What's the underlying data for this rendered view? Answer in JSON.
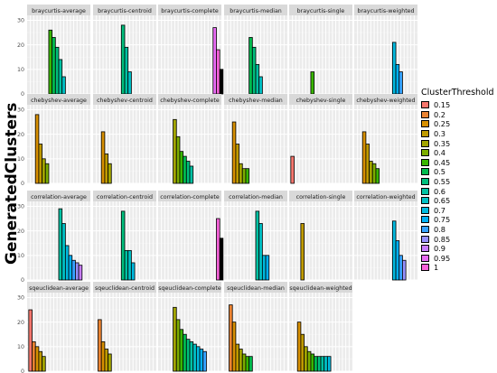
{
  "chart_data": {
    "type": "bar",
    "ylabel": "GeneratedClusters",
    "legend_title": "ClusterThreshold",
    "legend_placement": "right",
    "grid": true,
    "thresholds": [
      "0.15",
      "0.2",
      "0.25",
      "0.3",
      "0.35",
      "0.4",
      "0.45",
      "0.5",
      "0.55",
      "0.6",
      "0.65",
      "0.7",
      "0.75",
      "0.8",
      "0.85",
      "0.9",
      "0.95",
      "1"
    ],
    "legend_colors": [
      "#F8766D",
      "#EA8331",
      "#D89000",
      "#C09B00",
      "#A3A500",
      "#7CAE00",
      "#39B600",
      "#00BB4E",
      "#00BF7D",
      "#00C1A3",
      "#00BFC4",
      "#00BAE0",
      "#00B0F6",
      "#35A2FF",
      "#9590FF",
      "#C77CFF",
      "#E76BF3",
      "#FA62DB"
    ],
    "y_ticks": [
      0,
      10,
      20,
      30
    ],
    "ylim": [
      0,
      32
    ],
    "panels": [
      {
        "title": "braycurtis-average",
        "bars": [
          [
            6,
            26
          ],
          [
            7,
            23
          ],
          [
            8,
            19
          ],
          [
            9,
            14
          ],
          [
            10,
            7
          ]
        ]
      },
      {
        "title": "braycurtis-centroid",
        "bars": [
          [
            8,
            28
          ],
          [
            9,
            19
          ],
          [
            10,
            9
          ]
        ]
      },
      {
        "title": "braycurtis-complete",
        "bars": [
          [
            16,
            27
          ],
          [
            17,
            18
          ],
          [
            18,
            10
          ]
        ]
      },
      {
        "title": "braycurtis-median",
        "bars": [
          [
            7,
            23
          ],
          [
            8,
            19
          ],
          [
            9,
            12
          ],
          [
            10,
            7
          ]
        ]
      },
      {
        "title": "braycurtis-single",
        "bars": [
          [
            6,
            9
          ]
        ]
      },
      {
        "title": "braycurtis-weighted",
        "bars": [
          [
            11,
            21
          ],
          [
            12,
            12
          ],
          [
            13,
            9
          ]
        ]
      },
      {
        "title": "chebyshev-average",
        "bars": [
          [
            2,
            28
          ],
          [
            3,
            16
          ],
          [
            4,
            10
          ],
          [
            5,
            8
          ]
        ]
      },
      {
        "title": "chebyshev-centroid",
        "bars": [
          [
            2,
            21
          ],
          [
            3,
            12
          ],
          [
            4,
            8
          ]
        ]
      },
      {
        "title": "chebyshev-complete",
        "bars": [
          [
            4,
            26
          ],
          [
            5,
            19
          ],
          [
            6,
            13
          ],
          [
            7,
            11
          ],
          [
            8,
            9
          ],
          [
            9,
            7
          ]
        ]
      },
      {
        "title": "chebyshev-median",
        "bars": [
          [
            2,
            25
          ],
          [
            3,
            16
          ],
          [
            4,
            8
          ],
          [
            5,
            6
          ],
          [
            6,
            6
          ]
        ]
      },
      {
        "title": "chebyshev-single",
        "bars": [
          [
            0,
            11
          ]
        ]
      },
      {
        "title": "chebyshev-weighted",
        "bars": [
          [
            2,
            21
          ],
          [
            3,
            16
          ],
          [
            4,
            9
          ],
          [
            5,
            8
          ],
          [
            6,
            6
          ]
        ]
      },
      {
        "title": "correlation-average",
        "bars": [
          [
            9,
            29
          ],
          [
            10,
            23
          ],
          [
            11,
            14
          ],
          [
            12,
            10
          ],
          [
            13,
            8
          ],
          [
            14,
            7
          ],
          [
            15,
            6
          ]
        ]
      },
      {
        "title": "correlation-centroid",
        "bars": [
          [
            8,
            28
          ],
          [
            9,
            12
          ],
          [
            10,
            12
          ],
          [
            11,
            7
          ]
        ]
      },
      {
        "title": "correlation-complete",
        "bars": [
          [
            17,
            25
          ],
          [
            18,
            17
          ]
        ]
      },
      {
        "title": "correlation-median",
        "bars": [
          [
            9,
            28
          ],
          [
            10,
            23
          ],
          [
            11,
            10
          ],
          [
            12,
            10
          ]
        ]
      },
      {
        "title": "correlation-single",
        "bars": [
          [
            3,
            23
          ]
        ]
      },
      {
        "title": "correlation-weighted",
        "bars": [
          [
            11,
            24
          ],
          [
            12,
            16
          ],
          [
            13,
            10
          ],
          [
            14,
            8
          ]
        ]
      },
      {
        "title": "sqeuclidean-average",
        "bars": [
          [
            0,
            25
          ],
          [
            1,
            12
          ],
          [
            2,
            10
          ],
          [
            3,
            8
          ],
          [
            4,
            6
          ]
        ]
      },
      {
        "title": "sqeuclidean-centroid",
        "bars": [
          [
            1,
            21
          ],
          [
            2,
            12
          ],
          [
            3,
            9
          ],
          [
            4,
            7
          ]
        ]
      },
      {
        "title": "sqeuclidean-complete",
        "bars": [
          [
            4,
            26
          ],
          [
            5,
            21
          ],
          [
            6,
            17
          ],
          [
            7,
            15
          ],
          [
            8,
            13
          ],
          [
            9,
            12
          ],
          [
            10,
            11
          ],
          [
            11,
            10
          ],
          [
            12,
            9
          ],
          [
            13,
            8
          ]
        ]
      },
      {
        "title": "sqeuclidean-median",
        "bars": [
          [
            1,
            27
          ],
          [
            2,
            20
          ],
          [
            3,
            11
          ],
          [
            4,
            9
          ],
          [
            5,
            7
          ],
          [
            6,
            6
          ],
          [
            7,
            6
          ]
        ]
      },
      {
        "title": "sqeuclidean-weighted",
        "bars": [
          [
            2,
            20
          ],
          [
            3,
            15
          ],
          [
            4,
            10
          ],
          [
            5,
            8
          ],
          [
            6,
            7
          ],
          [
            7,
            6
          ],
          [
            8,
            6
          ],
          [
            9,
            6
          ],
          [
            10,
            6
          ],
          [
            11,
            6
          ]
        ]
      }
    ]
  }
}
